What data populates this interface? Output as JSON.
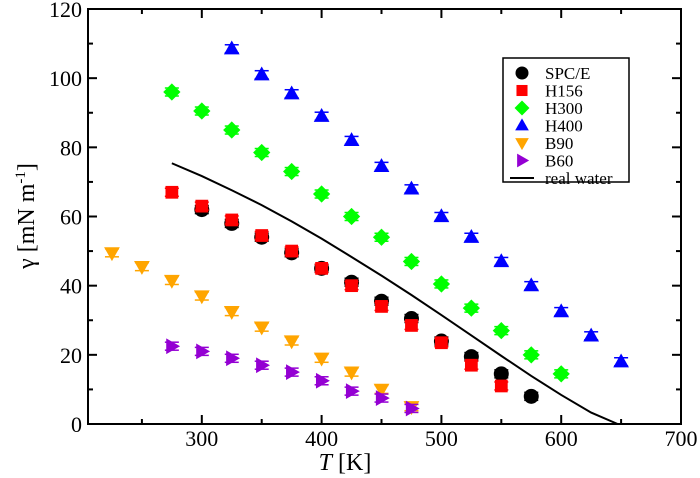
{
  "chart_data": {
    "type": "scatter",
    "xlabel_italic": "T",
    "xlabel_unit": "[K]",
    "ylabel_main": "γ [mN m",
    "ylabel_sup": "-1",
    "ylabel_close": "]",
    "xlim": [
      205,
      700
    ],
    "ylim": [
      0,
      120
    ],
    "xticks": [
      300,
      400,
      500,
      600,
      700
    ],
    "yticks": [
      0,
      20,
      40,
      60,
      80,
      100,
      120
    ],
    "grid": false,
    "legend_position": "top-right",
    "series": [
      {
        "name": "SPC/E",
        "marker": "circle",
        "color": "#000000",
        "x": [
          300,
          325,
          350,
          375,
          400,
          425,
          450,
          475,
          500,
          525,
          550,
          575
        ],
        "y": [
          62,
          58,
          54,
          49.5,
          45,
          41,
          35.5,
          30.5,
          24,
          19.5,
          14.5,
          8
        ]
      },
      {
        "name": "H156",
        "marker": "square",
        "color": "#ff0000",
        "x": [
          275,
          300,
          325,
          350,
          375,
          400,
          425,
          450,
          475,
          500,
          525,
          550
        ],
        "y": [
          67,
          63,
          59,
          54.5,
          50,
          45,
          40,
          34,
          28.5,
          23.5,
          17,
          11
        ]
      },
      {
        "name": "H300",
        "marker": "diamond",
        "color": "#00ff00",
        "x": [
          275,
          300,
          325,
          350,
          375,
          400,
          425,
          450,
          475,
          500,
          525,
          550,
          575,
          600
        ],
        "y": [
          96,
          90.5,
          85,
          78.5,
          73,
          66.5,
          60,
          54,
          47,
          40.5,
          33.5,
          27,
          20,
          14.5
        ]
      },
      {
        "name": "H400",
        "marker": "triangle-up",
        "color": "#0000ff",
        "x": [
          325,
          350,
          375,
          400,
          425,
          450,
          475,
          500,
          525,
          550,
          575,
          600,
          625,
          650
        ],
        "y": [
          108.5,
          101,
          95.5,
          89,
          82,
          74.5,
          68,
          60,
          54,
          47,
          40,
          32.5,
          25.5,
          18
        ]
      },
      {
        "name": "B90",
        "marker": "triangle-down",
        "color": "#ffa500",
        "x": [
          225,
          250,
          275,
          300,
          325,
          350,
          375,
          400,
          425,
          450,
          475
        ],
        "y": [
          49.5,
          45.5,
          41.5,
          37,
          32.5,
          28,
          24,
          19,
          15,
          10,
          5
        ]
      },
      {
        "name": "B60",
        "marker": "triangle-right",
        "color": "#9400d3",
        "x": [
          275,
          300,
          325,
          350,
          375,
          400,
          425,
          450,
          475
        ],
        "y": [
          22.5,
          21,
          19,
          17,
          15,
          12.5,
          9.5,
          7.5,
          4.5
        ]
      },
      {
        "name": "real water",
        "marker": "line",
        "color": "#000000",
        "x": [
          275,
          300,
          325,
          350,
          375,
          400,
          425,
          450,
          475,
          500,
          525,
          550,
          575,
          600,
          625,
          647.1
        ],
        "y": [
          75.4,
          71.7,
          67.6,
          63.3,
          58.6,
          53.6,
          48.3,
          42.9,
          37.3,
          31.5,
          25.6,
          19.7,
          13.9,
          8.4,
          3.3,
          0
        ]
      }
    ]
  }
}
